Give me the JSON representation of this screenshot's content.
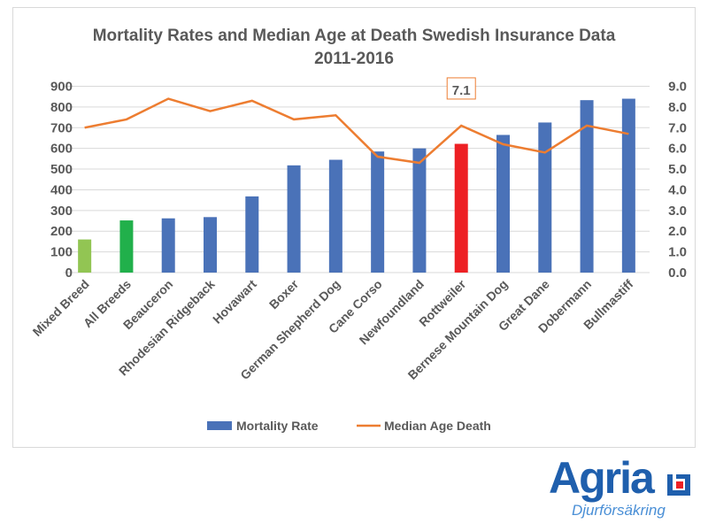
{
  "chart_data": {
    "type": "bar+line",
    "title": [
      "Mortality Rates and Median Age at Death Swedish Insurance Data",
      "2011-2016"
    ],
    "categories": [
      "Mixed Breed",
      "All Breeds",
      "Beauceron",
      "Rhodesian Ridgeback",
      "Hovawart",
      "Boxer",
      "German Shepherd Dog",
      "Cane Corso",
      "Newfoundland",
      "Rottweiler",
      "Bernese Mountain Dog",
      "Great Dane",
      "Dobermann",
      "Bullmastiff"
    ],
    "series": [
      {
        "name": "Mortality Rate",
        "type": "bar",
        "axis": "left",
        "values": [
          160,
          252,
          262,
          268,
          368,
          518,
          545,
          585,
          600,
          622,
          665,
          725,
          833,
          840
        ],
        "colors": [
          "#92c553",
          "#21b04b",
          "#4a72b8",
          "#4a72b8",
          "#4a72b8",
          "#4a72b8",
          "#4a72b8",
          "#4a72b8",
          "#4a72b8",
          "#ed2024",
          "#4a72b8",
          "#4a72b8",
          "#4a72b8",
          "#4a72b8"
        ]
      },
      {
        "name": "Median Age Death",
        "type": "line",
        "axis": "right",
        "color": "#ed7d31",
        "values": [
          7.0,
          7.4,
          8.4,
          7.8,
          8.3,
          7.4,
          7.6,
          5.6,
          5.3,
          7.1,
          6.2,
          5.8,
          7.1,
          6.7
        ]
      }
    ],
    "left_axis": {
      "ylim": [
        0,
        900
      ],
      "ticks": [
        "0",
        "100",
        "200",
        "300",
        "400",
        "500",
        "600",
        "700",
        "800",
        "900"
      ]
    },
    "right_axis": {
      "ylim": [
        0,
        9
      ],
      "ticks": [
        "0.0",
        "1.0",
        "2.0",
        "3.0",
        "4.0",
        "5.0",
        "6.0",
        "7.0",
        "8.0",
        "9.0"
      ]
    },
    "annotation": {
      "label": "7.1",
      "category": "Rottweiler"
    },
    "grid": true,
    "legend": "bottom"
  },
  "logo": {
    "text": "Agria",
    "subtitle": "Djurförsäkring",
    "brand_color": "#1f5fad",
    "accent": "#ed2024"
  }
}
